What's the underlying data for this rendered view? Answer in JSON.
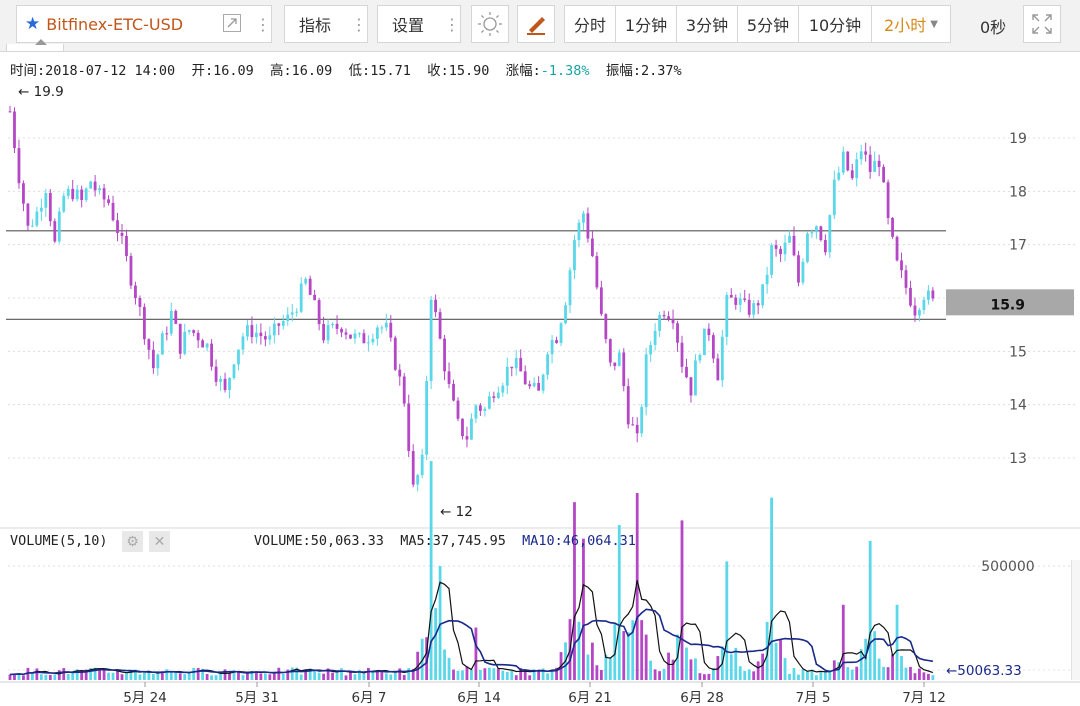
{
  "toolbar": {
    "symbol": "Bitfinex-ETC-USD",
    "indicators_label": "指标",
    "settings_label": "设置",
    "periods": [
      "分时",
      "1分钟",
      "3分钟",
      "5分钟",
      "10分钟"
    ],
    "active_period": "2小时",
    "countdown": "0秒"
  },
  "ohlc": {
    "time_label": "时间:",
    "time": "2018-07-12 14:00",
    "open_label": "开:",
    "open": "16.09",
    "high_label": "高:",
    "high": "16.09",
    "low_label": "低:",
    "low": "15.71",
    "close_label": "收:",
    "close": "15.90",
    "change_label": "涨幅:",
    "change": "-1.38%",
    "amplitude_label": "振幅:",
    "amplitude": "2.37%"
  },
  "volume_panel": {
    "title": "VOLUME(5,10)",
    "volume_label": "VOLUME:",
    "volume": "50,063.33",
    "ma5_label": "MA5:",
    "ma5": "37,745.95",
    "ma10_label": "MA10:",
    "ma10": "46,064.31"
  },
  "chart_data": {
    "type": "candlestick",
    "price_axis_ticks": [
      13,
      14,
      15,
      16,
      17,
      18,
      19
    ],
    "price_range": [
      12,
      19.9
    ],
    "high_marker": "19.9",
    "low_marker": "12",
    "last_price": "15.9",
    "horizontal_lines": [
      17.26,
      15.6
    ],
    "x_tick_labels": [
      "5月 24",
      "5月 31",
      "6月 7",
      "6月 14",
      "6月 21",
      "6月 28",
      "7月 5",
      "7月 12"
    ],
    "close_path": [
      [
        0,
        19.5
      ],
      [
        2,
        18.3
      ],
      [
        4,
        17.3
      ],
      [
        6,
        17.6
      ],
      [
        8,
        18.1
      ],
      [
        10,
        17.0
      ],
      [
        12,
        17.9
      ],
      [
        14,
        18.0
      ],
      [
        16,
        17.8
      ],
      [
        18,
        18.2
      ],
      [
        20,
        17.9
      ],
      [
        22,
        17.8
      ],
      [
        24,
        17.3
      ],
      [
        26,
        16.7
      ],
      [
        28,
        16.1
      ],
      [
        30,
        15.4
      ],
      [
        32,
        14.7
      ],
      [
        34,
        15.2
      ],
      [
        36,
        15.7
      ],
      [
        38,
        15.1
      ],
      [
        40,
        15.4
      ],
      [
        42,
        15.3
      ],
      [
        44,
        15.1
      ],
      [
        46,
        14.6
      ],
      [
        48,
        14.2
      ],
      [
        50,
        14.9
      ],
      [
        52,
        15.3
      ],
      [
        54,
        15.4
      ],
      [
        56,
        15.3
      ],
      [
        58,
        15.2
      ],
      [
        60,
        15.5
      ],
      [
        62,
        15.6
      ],
      [
        64,
        15.9
      ],
      [
        66,
        16.3
      ],
      [
        68,
        15.8
      ],
      [
        70,
        15.3
      ],
      [
        72,
        15.4
      ],
      [
        74,
        15.5
      ],
      [
        76,
        15.3
      ],
      [
        78,
        15.2
      ],
      [
        80,
        15.3
      ],
      [
        82,
        15.5
      ],
      [
        84,
        15.4
      ],
      [
        86,
        14.8
      ],
      [
        88,
        14.1
      ],
      [
        90,
        12.4
      ],
      [
        92,
        12.9
      ],
      [
        94,
        16.1
      ],
      [
        96,
        15.2
      ],
      [
        98,
        14.3
      ],
      [
        100,
        13.6
      ],
      [
        102,
        13.4
      ],
      [
        104,
        14.0
      ],
      [
        106,
        13.9
      ],
      [
        108,
        14.3
      ],
      [
        110,
        14.5
      ],
      [
        112,
        14.8
      ],
      [
        114,
        14.6
      ],
      [
        116,
        14.3
      ],
      [
        118,
        14.2
      ],
      [
        120,
        15.1
      ],
      [
        122,
        15.3
      ],
      [
        124,
        16.0
      ],
      [
        126,
        17.1
      ],
      [
        128,
        17.6
      ],
      [
        130,
        16.8
      ],
      [
        132,
        15.6
      ],
      [
        134,
        14.7
      ],
      [
        136,
        14.9
      ],
      [
        138,
        13.8
      ],
      [
        140,
        13.3
      ],
      [
        142,
        14.8
      ],
      [
        144,
        15.5
      ],
      [
        146,
        15.8
      ],
      [
        148,
        15.7
      ],
      [
        150,
        14.8
      ],
      [
        152,
        14.3
      ],
      [
        154,
        15.1
      ],
      [
        156,
        15.4
      ],
      [
        158,
        14.6
      ],
      [
        160,
        15.9
      ],
      [
        162,
        16.0
      ],
      [
        164,
        15.8
      ],
      [
        166,
        15.8
      ],
      [
        168,
        16.1
      ],
      [
        170,
        16.9
      ],
      [
        172,
        16.8
      ],
      [
        174,
        17.1
      ],
      [
        176,
        16.3
      ],
      [
        178,
        17.3
      ],
      [
        180,
        17.4
      ],
      [
        182,
        17.0
      ],
      [
        184,
        18.1
      ],
      [
        186,
        18.6
      ],
      [
        188,
        18.2
      ],
      [
        190,
        18.8
      ],
      [
        192,
        18.4
      ],
      [
        194,
        18.6
      ],
      [
        196,
        17.4
      ],
      [
        198,
        16.6
      ],
      [
        200,
        16.2
      ],
      [
        202,
        15.8
      ],
      [
        204,
        16.1
      ],
      [
        206,
        15.9
      ]
    ],
    "volume_axis_ticks": [
      500000
    ],
    "volume_range": [
      0,
      1000000
    ],
    "last_volume": "50063.33",
    "volume_peaks": [
      [
        94,
        960000
      ],
      [
        96,
        500000
      ],
      [
        104,
        230000
      ],
      [
        126,
        780000
      ],
      [
        128,
        620000
      ],
      [
        136,
        680000
      ],
      [
        140,
        820000
      ],
      [
        150,
        700000
      ],
      [
        160,
        520000
      ],
      [
        170,
        800000
      ],
      [
        186,
        330000
      ],
      [
        192,
        610000
      ],
      [
        198,
        330000
      ]
    ]
  }
}
